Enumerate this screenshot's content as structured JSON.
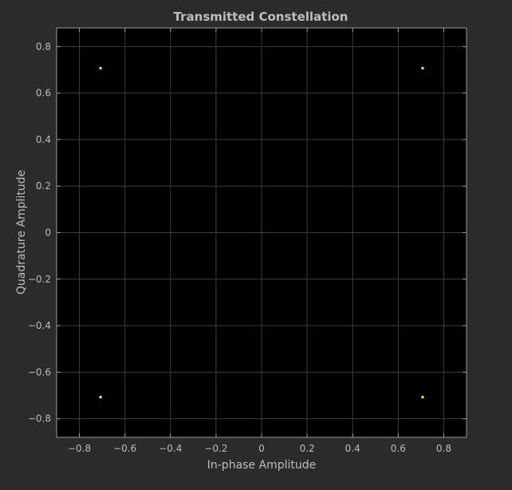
{
  "chart_data": {
    "type": "scatter",
    "title": "Transmitted Constellation",
    "xlabel": "In-phase Amplitude",
    "ylabel": "Quadrature Amplitude",
    "xlim": [
      -0.9,
      0.9
    ],
    "ylim": [
      -0.88,
      0.88
    ],
    "xticks": [
      -0.8,
      -0.6,
      -0.4,
      -0.2,
      0,
      0.2,
      0.4,
      0.6,
      0.8
    ],
    "yticks": [
      -0.8,
      -0.6,
      -0.4,
      -0.2,
      0,
      0.2,
      0.4,
      0.6,
      0.8
    ],
    "xtick_labels": [
      "−0.8",
      "−0.6",
      "−0.4",
      "−0.2",
      "0",
      "0.2",
      "0.4",
      "0.6",
      "0.8"
    ],
    "ytick_labels": [
      "−0.8",
      "−0.6",
      "−0.4",
      "−0.2",
      "0",
      "0.2",
      "0.4",
      "0.6",
      "0.8"
    ],
    "grid": true,
    "series": [
      {
        "points": [
          {
            "x": -0.7071,
            "y": 0.7071
          },
          {
            "x": 0.7071,
            "y": 0.7071
          },
          {
            "x": -0.7071,
            "y": -0.7071
          },
          {
            "x": 0.7071,
            "y": -0.7071
          }
        ]
      }
    ],
    "colors": {
      "figure_background": "#2b2b2b",
      "axes_background": "#000000",
      "grid": "#3d3d3d",
      "axes_edge": "#9a9a9a",
      "text": "#bdbdbd",
      "marker": "#ffff00"
    }
  }
}
